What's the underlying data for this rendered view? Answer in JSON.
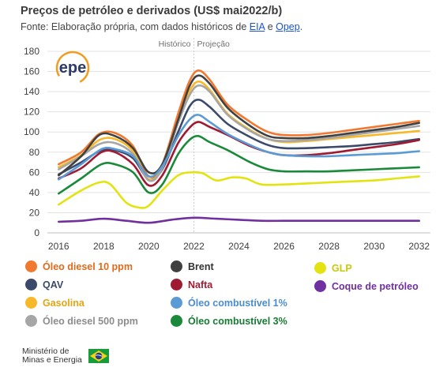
{
  "header": {
    "title": "Preços de petróleo e derivados (US$ mai2022/b)",
    "source_prefix": "Fonte: Elaboração própria, com dados históricos de ",
    "link1": "EIA",
    "middle": " e ",
    "link2": "Opep",
    "suffix": "."
  },
  "logo": {
    "text": "epe"
  },
  "footer": {
    "ministry_line1": "Ministério de",
    "ministry_line2": "Minas e Energia"
  },
  "chart_data": {
    "type": "line",
    "xlim": [
      2015.5,
      2032.5
    ],
    "ylim": [
      0,
      180
    ],
    "xticks": [
      "2016",
      "2018",
      "2020",
      "2022",
      "2024",
      "2026",
      "2028",
      "2030",
      "2032"
    ],
    "yticks": [
      "0",
      "20",
      "40",
      "60",
      "80",
      "100",
      "120",
      "140",
      "160",
      "180"
    ],
    "grid": "horizontal",
    "divider_x": 2022,
    "region_labels": [
      "Histórico",
      "Projeção"
    ],
    "series": [
      {
        "name": "Óleo diesel 10 ppm",
        "color": "#f0782f",
        "points": [
          [
            2016,
            68
          ],
          [
            2017,
            80
          ],
          [
            2017.8,
            98
          ],
          [
            2018.5,
            99
          ],
          [
            2019.3,
            86
          ],
          [
            2020,
            56
          ],
          [
            2020.6,
            68
          ],
          [
            2021.3,
            118
          ],
          [
            2021.8,
            150
          ],
          [
            2022.2,
            161
          ],
          [
            2022.7,
            152
          ],
          [
            2023.5,
            127
          ],
          [
            2024.5,
            110
          ],
          [
            2025.3,
            100
          ],
          [
            2026,
            97
          ],
          [
            2027,
            97
          ],
          [
            2028,
            99
          ],
          [
            2029,
            102
          ],
          [
            2030,
            105
          ],
          [
            2031,
            108
          ],
          [
            2032,
            111
          ]
        ]
      },
      {
        "name": "QAV",
        "color": "#3b4a6b",
        "points": [
          [
            2016,
            58
          ],
          [
            2017,
            70
          ],
          [
            2017.9,
            82
          ],
          [
            2018.5,
            82
          ],
          [
            2019.3,
            74
          ],
          [
            2020,
            53
          ],
          [
            2020.6,
            63
          ],
          [
            2021.3,
            100
          ],
          [
            2021.8,
            125
          ],
          [
            2022.2,
            132
          ],
          [
            2022.7,
            125
          ],
          [
            2023.5,
            108
          ],
          [
            2024.5,
            95
          ],
          [
            2025.3,
            87
          ],
          [
            2026,
            84
          ],
          [
            2027,
            84
          ],
          [
            2028,
            85
          ],
          [
            2029,
            86
          ],
          [
            2030,
            88
          ],
          [
            2031,
            90
          ],
          [
            2032,
            93
          ]
        ]
      },
      {
        "name": "Gasolina",
        "color": "#f7b82a",
        "points": [
          [
            2016,
            65
          ],
          [
            2017,
            77
          ],
          [
            2017.8,
            92
          ],
          [
            2018.5,
            93
          ],
          [
            2019.3,
            81
          ],
          [
            2020,
            53
          ],
          [
            2020.6,
            65
          ],
          [
            2021.3,
            112
          ],
          [
            2021.8,
            140
          ],
          [
            2022.2,
            150
          ],
          [
            2022.7,
            142
          ],
          [
            2023.5,
            118
          ],
          [
            2024.5,
            102
          ],
          [
            2025.3,
            93
          ],
          [
            2026,
            90
          ],
          [
            2027,
            91
          ],
          [
            2028,
            93
          ],
          [
            2029,
            95
          ],
          [
            2030,
            97
          ],
          [
            2031,
            99
          ],
          [
            2032,
            101
          ]
        ]
      },
      {
        "name": "Óleo diesel 500 ppm",
        "color": "#a6a6a6",
        "points": [
          [
            2016,
            63
          ],
          [
            2017,
            76
          ],
          [
            2017.8,
            88
          ],
          [
            2018.5,
            89
          ],
          [
            2019.3,
            78
          ],
          [
            2020,
            52
          ],
          [
            2020.6,
            64
          ],
          [
            2021.3,
            109
          ],
          [
            2021.8,
            136
          ],
          [
            2022.2,
            146
          ],
          [
            2022.7,
            140
          ],
          [
            2023.5,
            117
          ],
          [
            2024.5,
            101
          ],
          [
            2025.3,
            93
          ],
          [
            2026,
            91
          ],
          [
            2027,
            92
          ],
          [
            2028,
            94
          ],
          [
            2029,
            97
          ],
          [
            2030,
            100
          ],
          [
            2031,
            103
          ],
          [
            2032,
            106
          ]
        ]
      },
      {
        "name": "Brent",
        "color": "#404040",
        "points": [
          [
            2016,
            57
          ],
          [
            2017,
            76
          ],
          [
            2017.8,
            97
          ],
          [
            2018.5,
            96
          ],
          [
            2019.3,
            84
          ],
          [
            2020,
            60
          ],
          [
            2020.6,
            68
          ],
          [
            2021.3,
            112
          ],
          [
            2021.8,
            145
          ],
          [
            2022.2,
            156
          ],
          [
            2022.7,
            148
          ],
          [
            2023.5,
            124
          ],
          [
            2024.5,
            106
          ],
          [
            2025.3,
            96
          ],
          [
            2026,
            94
          ],
          [
            2027,
            94
          ],
          [
            2028,
            96
          ],
          [
            2029,
            99
          ],
          [
            2030,
            102
          ],
          [
            2031,
            105
          ],
          [
            2032,
            109
          ]
        ]
      },
      {
        "name": "Nafta",
        "color": "#9e1b32",
        "points": [
          [
            2016,
            54
          ],
          [
            2017,
            64
          ],
          [
            2017.9,
            80
          ],
          [
            2018.5,
            80
          ],
          [
            2019.3,
            68
          ],
          [
            2020,
            47
          ],
          [
            2020.6,
            57
          ],
          [
            2021.3,
            89
          ],
          [
            2021.8,
            104
          ],
          [
            2022.2,
            110
          ],
          [
            2022.7,
            105
          ],
          [
            2023.5,
            97
          ],
          [
            2024.5,
            86
          ],
          [
            2025.3,
            80
          ],
          [
            2026,
            77
          ],
          [
            2027,
            77
          ],
          [
            2028,
            79
          ],
          [
            2029,
            82
          ],
          [
            2030,
            85
          ],
          [
            2031,
            88
          ],
          [
            2032,
            92
          ]
        ]
      },
      {
        "name": "Óleo combustível 1%",
        "color": "#5b9bd5",
        "points": [
          [
            2016,
            53
          ],
          [
            2017,
            68
          ],
          [
            2017.9,
            83
          ],
          [
            2018.5,
            83
          ],
          [
            2019.3,
            76
          ],
          [
            2020,
            56
          ],
          [
            2020.6,
            66
          ],
          [
            2021.3,
            96
          ],
          [
            2021.8,
            112
          ],
          [
            2022.2,
            117
          ],
          [
            2022.7,
            110
          ],
          [
            2023.5,
            98
          ],
          [
            2024.5,
            87
          ],
          [
            2025.3,
            80
          ],
          [
            2026,
            77
          ],
          [
            2027,
            76
          ],
          [
            2028,
            76
          ],
          [
            2029,
            77
          ],
          [
            2030,
            78
          ],
          [
            2031,
            79
          ],
          [
            2032,
            81
          ]
        ]
      },
      {
        "name": "Óleo combustível 3%",
        "color": "#1a8a3a",
        "points": [
          [
            2016,
            39
          ],
          [
            2017,
            54
          ],
          [
            2017.9,
            68
          ],
          [
            2018.5,
            68
          ],
          [
            2019.3,
            60
          ],
          [
            2020,
            40
          ],
          [
            2020.6,
            48
          ],
          [
            2021.3,
            78
          ],
          [
            2021.8,
            92
          ],
          [
            2022.2,
            96
          ],
          [
            2022.7,
            90
          ],
          [
            2023.5,
            82
          ],
          [
            2024.5,
            70
          ],
          [
            2025.3,
            63
          ],
          [
            2026,
            61
          ],
          [
            2027,
            61
          ],
          [
            2028,
            61
          ],
          [
            2029,
            62
          ],
          [
            2030,
            63
          ],
          [
            2031,
            64
          ],
          [
            2032,
            65
          ]
        ]
      },
      {
        "name": "GLP",
        "color": "#e3e312",
        "points": [
          [
            2016,
            28
          ],
          [
            2017,
            42
          ],
          [
            2017.8,
            50
          ],
          [
            2018.3,
            48
          ],
          [
            2019,
            30
          ],
          [
            2019.6,
            25
          ],
          [
            2020,
            27
          ],
          [
            2020.6,
            42
          ],
          [
            2021.3,
            57
          ],
          [
            2021.9,
            60
          ],
          [
            2022.4,
            59
          ],
          [
            2023,
            52
          ],
          [
            2023.7,
            55
          ],
          [
            2024.3,
            54
          ],
          [
            2025,
            48
          ],
          [
            2026,
            48
          ],
          [
            2027,
            49
          ],
          [
            2028,
            50
          ],
          [
            2029,
            51
          ],
          [
            2030,
            52
          ],
          [
            2031,
            54
          ],
          [
            2032,
            56
          ]
        ]
      },
      {
        "name": "Coque de petróleo",
        "color": "#7030a0",
        "points": [
          [
            2016,
            11
          ],
          [
            2017,
            12
          ],
          [
            2018,
            14
          ],
          [
            2019,
            12
          ],
          [
            2020,
            10
          ],
          [
            2021,
            13
          ],
          [
            2022,
            15
          ],
          [
            2023,
            14
          ],
          [
            2024,
            13
          ],
          [
            2025,
            12
          ],
          [
            2026,
            12
          ],
          [
            2027,
            12
          ],
          [
            2028,
            12
          ],
          [
            2029,
            12
          ],
          [
            2030,
            12
          ],
          [
            2031,
            12
          ],
          [
            2032,
            12
          ]
        ]
      }
    ]
  },
  "legend": [
    {
      "label": "Óleo diesel 10 ppm",
      "color": "#f0782f",
      "text_color": "#e06a1c"
    },
    {
      "label": "QAV",
      "color": "#3b4a6b",
      "text_color": "#3b4a6b"
    },
    {
      "label": "Gasolina",
      "color": "#f7b82a",
      "text_color": "#e4a412"
    },
    {
      "label": "Óleo diesel 500 ppm",
      "color": "#a6a6a6",
      "text_color": "#8c8c8c"
    },
    {
      "label": "Brent",
      "color": "#404040",
      "text_color": "#333333"
    },
    {
      "label": "Nafta",
      "color": "#9e1b32",
      "text_color": "#9e1b32"
    },
    {
      "label": "Óleo combustível 1%",
      "color": "#5b9bd5",
      "text_color": "#4a8ccc"
    },
    {
      "label": "Óleo combustível 3%",
      "color": "#1a8a3a",
      "text_color": "#177a33"
    },
    {
      "label": "GLP",
      "color": "#e3e312",
      "text_color": "#c9c90a"
    },
    {
      "label": "Coque de petróleo",
      "color": "#7030a0",
      "text_color": "#7030a0"
    }
  ]
}
